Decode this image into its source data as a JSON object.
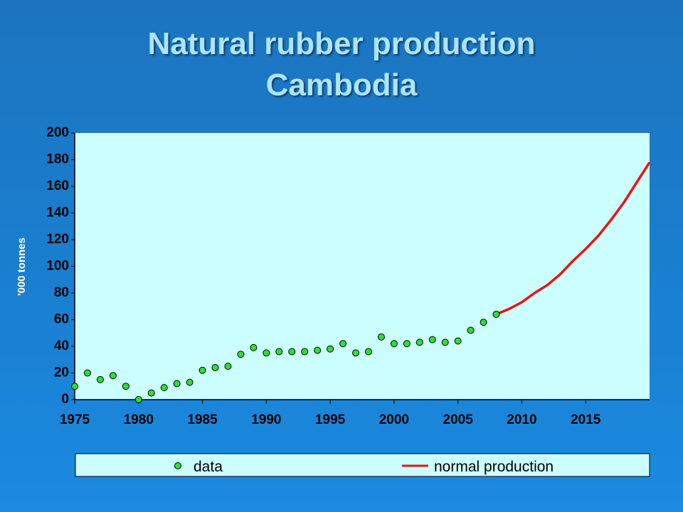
{
  "title": {
    "line1": "Natural rubber production",
    "line2": "Cambodia"
  },
  "colors": {
    "plot_background": "#ccffff",
    "data_marker": "#33dd33",
    "normal_line": "#ee1111"
  },
  "chart_data": {
    "type": "scatter",
    "title": "Natural rubber production Cambodia",
    "xlabel": "",
    "ylabel": "'000 tonnes",
    "xlim": [
      1975,
      2020
    ],
    "ylim": [
      0,
      200
    ],
    "x_ticks": [
      1975,
      1980,
      1985,
      1990,
      1995,
      2000,
      2005,
      2010,
      2015
    ],
    "y_ticks": [
      0,
      20,
      40,
      60,
      80,
      100,
      120,
      140,
      160,
      180,
      200
    ],
    "grid": false,
    "legend": "bottom",
    "series": [
      {
        "name": "data",
        "type": "scatter",
        "x": [
          1975,
          1976,
          1977,
          1978,
          1979,
          1980,
          1981,
          1982,
          1983,
          1984,
          1985,
          1986,
          1987,
          1988,
          1989,
          1990,
          1991,
          1992,
          1993,
          1994,
          1995,
          1996,
          1997,
          1998,
          1999,
          2000,
          2001,
          2002,
          2003,
          2004,
          2005,
          2006,
          2007,
          2008
        ],
        "y": [
          10,
          20,
          15,
          18,
          10,
          0,
          5,
          9,
          12,
          13,
          22,
          24,
          25,
          34,
          39,
          35,
          36,
          36,
          36,
          37,
          38,
          42,
          35,
          36,
          47,
          42,
          42,
          43,
          45,
          43,
          44,
          52,
          58,
          64
        ]
      },
      {
        "name": "normal production",
        "type": "line",
        "x": [
          2008,
          2009,
          2010,
          2011,
          2012,
          2013,
          2014,
          2015,
          2016,
          2017,
          2018,
          2019,
          2020
        ],
        "y": [
          64,
          68,
          73,
          80,
          86,
          94,
          104,
          113,
          123,
          135,
          148,
          163,
          178
        ]
      }
    ]
  }
}
